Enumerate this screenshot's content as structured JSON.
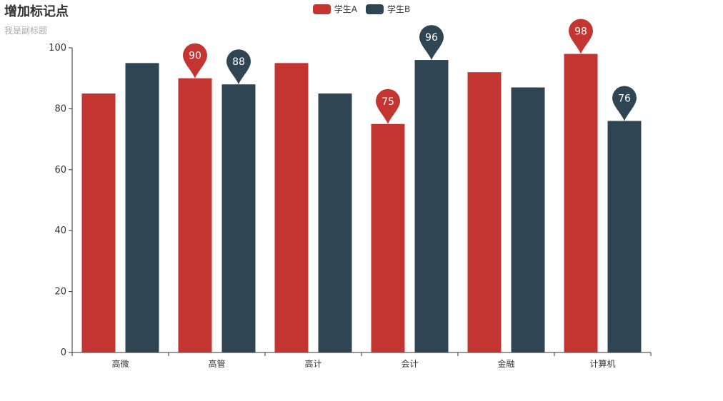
{
  "chart_data": {
    "type": "bar",
    "title": "增加标记点",
    "subtitle": "我是副标题",
    "categories": [
      "高微",
      "高管",
      "高计",
      "会计",
      "金融",
      "计算机"
    ],
    "series": [
      {
        "name": "学生A",
        "color": "#c23531",
        "values": [
          85,
          90,
          95,
          75,
          92,
          98
        ]
      },
      {
        "name": "学生B",
        "color": "#2f4554",
        "values": [
          95,
          88,
          85,
          96,
          87,
          76
        ]
      }
    ],
    "y_ticks": [
      "0",
      "20",
      "40",
      "60",
      "80",
      "100"
    ],
    "ylim": [
      0,
      100
    ],
    "markers": [
      {
        "series": 0,
        "category": 1,
        "label": "90"
      },
      {
        "series": 1,
        "category": 1,
        "label": "88"
      },
      {
        "series": 0,
        "category": 3,
        "label": "75"
      },
      {
        "series": 1,
        "category": 3,
        "label": "96"
      },
      {
        "series": 0,
        "category": 5,
        "label": "98"
      },
      {
        "series": 1,
        "category": 5,
        "label": "76"
      }
    ],
    "legend_position": "top-center",
    "grid": false
  }
}
